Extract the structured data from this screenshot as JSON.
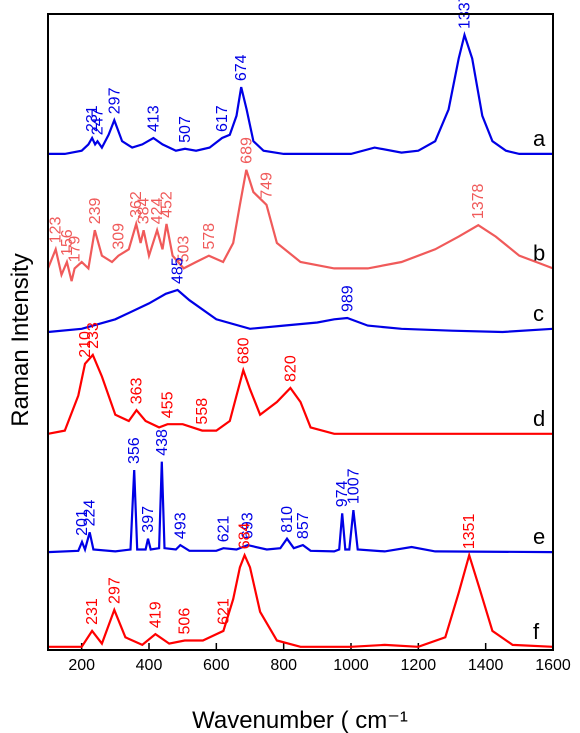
{
  "chart_data": {
    "type": "line",
    "xlabel": "Wavenumber ( cm⁻¹",
    "ylabel": "Raman Intensity",
    "xlim": [
      100,
      1600
    ],
    "xticks": [
      200,
      400,
      600,
      800,
      1000,
      1200,
      1400,
      1600
    ],
    "ylim": [
      0,
      100
    ],
    "series": [
      {
        "name": "a",
        "color": "#0000e6",
        "x": [
          100,
          150,
          200,
          220,
          231,
          240,
          247,
          260,
          280,
          297,
          320,
          350,
          380,
          413,
          440,
          480,
          507,
          540,
          580,
          617,
          640,
          660,
          674,
          690,
          710,
          740,
          800,
          900,
          1000,
          1070,
          1150,
          1200,
          1250,
          1290,
          1320,
          1337,
          1360,
          1390,
          1420,
          1460,
          1500,
          1550,
          1600
        ],
        "values": [
          78,
          78,
          78.5,
          79.5,
          80.5,
          79.5,
          80,
          79,
          81,
          83.3,
          80,
          79,
          79.5,
          80.5,
          79.5,
          78.5,
          78.8,
          78.5,
          79,
          80.5,
          81,
          84,
          88.5,
          85,
          80,
          78.5,
          78,
          78,
          78,
          79,
          78.2,
          78.5,
          80,
          85,
          93,
          96.7,
          93,
          84,
          80,
          78.5,
          78,
          78,
          78
        ],
        "annotations": [
          231,
          247,
          297,
          413,
          507,
          617,
          674,
          1337
        ]
      },
      {
        "name": "b",
        "color": "#f05a5a",
        "x": [
          100,
          123,
          140,
          156,
          170,
          179,
          200,
          220,
          239,
          260,
          290,
          309,
          340,
          362,
          375,
          384,
          400,
          424,
          440,
          452,
          470,
          503,
          540,
          578,
          620,
          650,
          670,
          689,
          710,
          749,
          780,
          850,
          950,
          1050,
          1150,
          1250,
          1320,
          1378,
          1430,
          1500,
          1550,
          1600
        ],
        "values": [
          60,
          63,
          59,
          61,
          58,
          60,
          61,
          60,
          66,
          62,
          61,
          62,
          63,
          67,
          64,
          66,
          62,
          66,
          63,
          67,
          62,
          60,
          61,
          62,
          61,
          64,
          70,
          75.5,
          72,
          70,
          64,
          61,
          60,
          60,
          61,
          63,
          65,
          66.8,
          65,
          62,
          61,
          60
        ],
        "annotations": [
          123,
          156,
          179,
          239,
          309,
          362,
          384,
          424,
          452,
          503,
          578,
          689,
          749,
          1378
        ]
      },
      {
        "name": "c",
        "color": "#0000e6",
        "x": [
          100,
          200,
          300,
          400,
          450,
          485,
          520,
          600,
          700,
          800,
          900,
          950,
          989,
          1050,
          1150,
          1300,
          1450,
          1600
        ],
        "values": [
          50,
          50.5,
          52,
          54.5,
          56,
          56.6,
          55,
          52,
          50.5,
          51,
          51.5,
          52,
          52.2,
          51,
          50.5,
          50.2,
          50,
          50.5
        ],
        "annotations": [
          485,
          989
        ]
      },
      {
        "name": "d",
        "color": "#ff0000",
        "x": [
          100,
          150,
          190,
          210,
          233,
          260,
          300,
          340,
          363,
          390,
          430,
          455,
          500,
          558,
          600,
          640,
          660,
          680,
          700,
          730,
          780,
          820,
          850,
          880,
          950,
          1100,
          1300,
          1600
        ],
        "values": [
          34,
          34.5,
          40,
          45,
          46.4,
          43,
          37,
          36,
          37.7,
          36,
          35,
          35.5,
          35.5,
          34.5,
          34.5,
          36,
          40,
          44,
          41,
          37,
          39,
          41.2,
          39,
          35,
          34,
          34,
          34,
          34
        ],
        "annotations": [
          210,
          233,
          363,
          455,
          558,
          680,
          820
        ]
      },
      {
        "name": "e",
        "color": "#0000e6",
        "x": [
          100,
          190,
          201,
          210,
          224,
          235,
          300,
          345,
          356,
          365,
          390,
          397,
          405,
          430,
          438,
          446,
          480,
          493,
          520,
          600,
          621,
          660,
          693,
          750,
          790,
          810,
          830,
          857,
          880,
          950,
          965,
          974,
          983,
          995,
          1007,
          1020,
          1100,
          1180,
          1250,
          1600
        ],
        "values": [
          15.4,
          15.6,
          17,
          15.8,
          18.5,
          15.8,
          15.5,
          15.8,
          28.3,
          15.8,
          15.8,
          17.5,
          15.8,
          16,
          29.6,
          16,
          15.8,
          16.5,
          15.6,
          15.6,
          16,
          15.8,
          16.5,
          15.8,
          16,
          17.5,
          16,
          16.5,
          15.6,
          15.5,
          15.8,
          21.5,
          15.8,
          15.8,
          22,
          15.8,
          15.5,
          16.2,
          15.5,
          15.4
        ],
        "annotations": [
          201,
          224,
          356,
          397,
          438,
          493,
          621,
          693,
          810,
          857,
          974,
          1007
        ]
      },
      {
        "name": "f",
        "color": "#ff0000",
        "x": [
          100,
          200,
          231,
          260,
          297,
          330,
          380,
          419,
          460,
          506,
          560,
          621,
          650,
          670,
          684,
          700,
          730,
          780,
          850,
          1000,
          1100,
          1200,
          1280,
          1320,
          1351,
          1380,
          1420,
          1480,
          1600
        ],
        "values": [
          0.5,
          0.5,
          3,
          1,
          6.3,
          2,
          0.8,
          2.5,
          1,
          1.5,
          1.5,
          3,
          8,
          13,
          14.9,
          13,
          6,
          1.5,
          0.5,
          0.5,
          0.8,
          0.5,
          2,
          9,
          14.9,
          10,
          3,
          0.8,
          0.5
        ],
        "annotations": [
          231,
          297,
          419,
          506,
          621,
          684,
          1351
        ]
      }
    ]
  }
}
